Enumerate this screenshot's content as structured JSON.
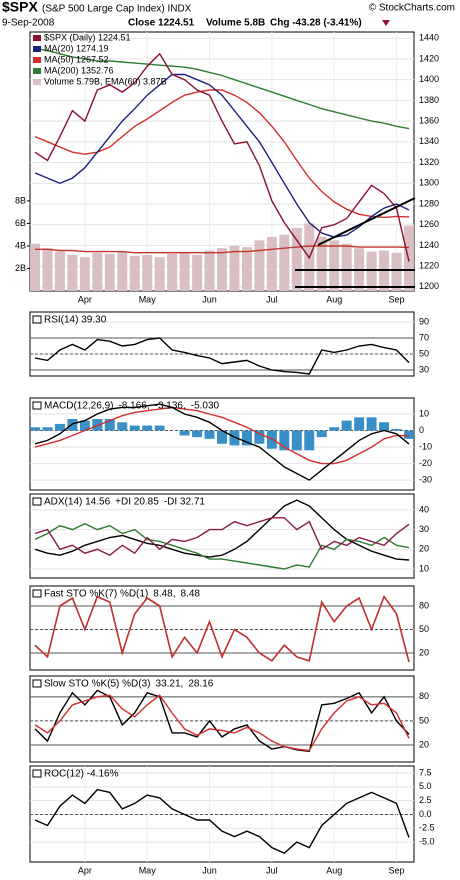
{
  "header": {
    "symbol": "$SPX",
    "name": "(S&P 500 Large Cap Index) INDX",
    "date": "9-Sep-2008",
    "close": "Close 1224.51",
    "volume": "Volume 5.8B",
    "change": "Chg -43.28 (-3.41%)",
    "credit": "© StockCharts.com"
  },
  "chart_data": [
    {
      "type": "line",
      "categories": [
        null,
        null,
        null,
        null,
        "Apr",
        null,
        null,
        null,
        null,
        "May",
        null,
        null,
        null,
        null,
        "Jun",
        null,
        null,
        null,
        null,
        "Jul",
        null,
        null,
        null,
        null,
        "Aug",
        null,
        null,
        null,
        null,
        "Sep",
        null
      ],
      "ylim": [
        1196,
        1446
      ],
      "yticks": [
        1200,
        1220,
        1240,
        1260,
        1280,
        1300,
        1320,
        1340,
        1360,
        1380,
        1400,
        1420,
        1440
      ],
      "y2lim": [
        0,
        23
      ],
      "y2ticks": [
        {
          "value": 2,
          "label": "2B"
        },
        {
          "value": 4,
          "label": "4B"
        },
        {
          "value": 6,
          "label": "6B"
        },
        {
          "value": 8,
          "label": "8B"
        }
      ],
      "series": [
        {
          "name": "Volume 5.79B, EMA(60) 3.87B",
          "type": "bar",
          "axis": "y2",
          "color": "#d9bfc3",
          "values": [
            4.2,
            3.8,
            3.5,
            3.2,
            3.0,
            3.4,
            3.3,
            3.5,
            3.1,
            3.2,
            3.0,
            3.3,
            3.4,
            3.2,
            3.6,
            3.8,
            4.0,
            3.9,
            4.5,
            4.8,
            5.0,
            5.6,
            6.0,
            4.8,
            4.5,
            4.2,
            3.8,
            3.5,
            3.6,
            3.4,
            5.79
          ]
        },
        {
          "axis": "y2",
          "color": "#c0392b",
          "values": [
            3.7,
            3.7,
            3.6,
            3.6,
            3.5,
            3.5,
            3.5,
            3.5,
            3.4,
            3.4,
            3.4,
            3.4,
            3.4,
            3.4,
            3.4,
            3.4,
            3.5,
            3.5,
            3.6,
            3.7,
            3.8,
            3.9,
            4.0,
            4.0,
            4.0,
            4.0,
            3.9,
            3.9,
            3.9,
            3.9,
            3.87
          ]
        },
        {
          "name": "MA(200) 1352.76",
          "color": "#2e7d32",
          "values": [
            1430,
            1428,
            1425,
            1422,
            1420,
            1418,
            1418,
            1417,
            1416,
            1415,
            1414,
            1413,
            1412,
            1410,
            1407,
            1404,
            1400,
            1396,
            1392,
            1388,
            1384,
            1380,
            1376,
            1372,
            1369,
            1366,
            1363,
            1360,
            1358,
            1355,
            1352.76
          ]
        },
        {
          "name": "MA(50) 1267.52",
          "color": "#d32f2f",
          "values": [
            1345,
            1340,
            1335,
            1330,
            1328,
            1330,
            1335,
            1345,
            1355,
            1362,
            1370,
            1378,
            1385,
            1388,
            1390,
            1390,
            1385,
            1378,
            1368,
            1355,
            1340,
            1322,
            1305,
            1292,
            1282,
            1275,
            1270,
            1268,
            1267,
            1268,
            1267.52
          ]
        },
        {
          "name": "MA(20) 1274.19",
          "color": "#1a237e",
          "values": [
            1310,
            1305,
            1300,
            1305,
            1315,
            1330,
            1345,
            1360,
            1372,
            1385,
            1395,
            1405,
            1405,
            1400,
            1395,
            1385,
            1370,
            1355,
            1340,
            1320,
            1300,
            1280,
            1262,
            1252,
            1248,
            1250,
            1258,
            1268,
            1276,
            1280,
            1274.19
          ]
        },
        {
          "name": "$SPX (Daily) 1224.51",
          "color": "#8b1030",
          "values": [
            1330,
            1322,
            1345,
            1370,
            1360,
            1390,
            1395,
            1388,
            1397,
            1413,
            1425,
            1405,
            1400,
            1390,
            1385,
            1360,
            1338,
            1340,
            1317,
            1283,
            1262,
            1245,
            1228,
            1257,
            1260,
            1266,
            1282,
            1298,
            1290,
            1276,
            1224.51
          ]
        }
      ]
    },
    {
      "type": "line",
      "ylim": [
        22.5,
        102.5
      ],
      "yticks": [
        30,
        50,
        70,
        90
      ],
      "hlines": [
        30,
        50,
        70
      ],
      "series": [
        {
          "name": "RSI(14) 39.30",
          "color": "#000000",
          "values": [
            45,
            42,
            55,
            62,
            55,
            68,
            66,
            60,
            62,
            68,
            70,
            55,
            52,
            48,
            45,
            38,
            40,
            42,
            35,
            30,
            28,
            27,
            25,
            55,
            52,
            55,
            60,
            62,
            58,
            55,
            39.3
          ]
        }
      ]
    },
    {
      "type": "line",
      "title": "MACD(12,26,9)",
      "ylim": [
        -36,
        19.7
      ],
      "yticks": [
        10,
        0,
        -10,
        -20,
        -30
      ],
      "hlines": [
        0
      ],
      "series": [
        {
          "name": "-5.030",
          "type": "bar",
          "color": "#3a8fc7",
          "values": [
            2,
            2,
            4,
            7,
            6,
            7,
            7,
            5,
            3,
            3,
            3,
            0,
            -3,
            -4,
            -5,
            -8,
            -9,
            -9,
            -8,
            -11,
            -12,
            -12,
            -12,
            -4,
            2,
            6,
            8,
            8,
            5,
            1,
            -5.03
          ]
        },
        {
          "name": "-3.136,",
          "color": "#d32f2f",
          "values": [
            -10,
            -8,
            -6,
            -3,
            0,
            3,
            6,
            9,
            11,
            12,
            13,
            14,
            13,
            12,
            10,
            8,
            5,
            2,
            -2,
            -5,
            -10,
            -14,
            -18,
            -20,
            -20,
            -18,
            -14,
            -10,
            -5,
            -3,
            -3.136
          ]
        },
        {
          "name": "-8.166,",
          "color": "#000000",
          "values": [
            -8,
            -6,
            -2,
            4,
            6,
            10,
            13,
            14,
            14,
            15,
            16,
            14,
            10,
            8,
            5,
            0,
            -4,
            -7,
            -10,
            -16,
            -22,
            -26,
            -30,
            -24,
            -18,
            -12,
            -6,
            -2,
            0,
            -2,
            -8.166
          ]
        }
      ]
    },
    {
      "type": "line",
      "ylim": [
        5.4,
        48.1
      ],
      "yticks": [
        10,
        20,
        30,
        40
      ],
      "series": [
        {
          "name": "ADX(14) 14.56",
          "color": "#000000",
          "values": [
            20,
            18,
            17,
            19,
            22,
            24,
            26,
            27,
            25,
            23,
            22,
            20,
            18,
            17,
            16,
            17,
            20,
            24,
            30,
            36,
            42,
            45,
            42,
            36,
            30,
            25,
            22,
            19,
            17,
            15,
            14.56
          ]
        },
        {
          "name": "+DI 20.85",
          "color": "#2e7d32",
          "values": [
            25,
            28,
            32,
            30,
            33,
            30,
            32,
            28,
            30,
            25,
            24,
            22,
            20,
            18,
            15,
            15,
            14,
            13,
            12,
            11,
            10,
            12,
            11,
            22,
            20,
            25,
            24,
            22,
            26,
            22,
            20.85
          ]
        },
        {
          "name": "-DI 32.71",
          "color": "#8b1a4a",
          "values": [
            28,
            30,
            20,
            22,
            18,
            20,
            17,
            22,
            18,
            26,
            20,
            25,
            24,
            26,
            30,
            30,
            34,
            32,
            34,
            36,
            36,
            30,
            34,
            20,
            24,
            22,
            26,
            24,
            22,
            28,
            32.71
          ]
        }
      ]
    },
    {
      "type": "line",
      "title": "Fast STO %K(7) %D(1)",
      "ylim": [
        -1.7,
        105.5
      ],
      "yticks": [
        20,
        50,
        80
      ],
      "hlines": [
        20,
        50,
        80
      ],
      "series": [
        {
          "name": "8.48,",
          "color": "#000000",
          "values": [
            30,
            15,
            80,
            90,
            50,
            92,
            85,
            20,
            70,
            90,
            80,
            15,
            40,
            20,
            60,
            15,
            50,
            40,
            20,
            10,
            30,
            15,
            10,
            85,
            60,
            80,
            90,
            50,
            92,
            70,
            8.48
          ]
        },
        {
          "name": "8.48",
          "color": "#d32f2f",
          "values": [
            30,
            15,
            80,
            90,
            50,
            92,
            85,
            20,
            70,
            90,
            80,
            15,
            40,
            20,
            60,
            15,
            50,
            40,
            20,
            10,
            30,
            15,
            10,
            85,
            60,
            80,
            90,
            50,
            92,
            70,
            8.48
          ]
        }
      ]
    },
    {
      "type": "line",
      "title": "Slow STO %K(5) %D(3)",
      "ylim": [
        -1.25,
        106
      ],
      "yticks": [
        20,
        50,
        80
      ],
      "hlines": [
        20,
        50,
        80
      ],
      "series": [
        {
          "name": "33.21,",
          "color": "#000000",
          "values": [
            40,
            25,
            60,
            85,
            70,
            88,
            80,
            45,
            60,
            85,
            80,
            35,
            35,
            30,
            50,
            30,
            40,
            45,
            25,
            15,
            18,
            14,
            12,
            70,
            72,
            78,
            85,
            60,
            80,
            50,
            33.21
          ]
        },
        {
          "name": "28.16",
          "color": "#d32f2f",
          "values": [
            45,
            35,
            50,
            70,
            75,
            80,
            82,
            65,
            55,
            70,
            82,
            60,
            40,
            32,
            40,
            38,
            35,
            42,
            35,
            25,
            18,
            15,
            13,
            40,
            60,
            75,
            80,
            70,
            72,
            60,
            28.16
          ]
        }
      ]
    },
    {
      "type": "line",
      "ylim": [
        -8.6,
        8.77
      ],
      "categories": [
        null,
        null,
        null,
        null,
        "Apr",
        null,
        null,
        null,
        null,
        "May",
        null,
        null,
        null,
        null,
        "Jun",
        null,
        null,
        null,
        null,
        "Jul",
        null,
        null,
        null,
        null,
        "Aug",
        null,
        null,
        null,
        null,
        "Sep",
        null
      ],
      "yticks": [
        {
          "value": 7.5,
          "label": "7.5"
        },
        {
          "value": 5,
          "label": "5.0"
        },
        {
          "value": 2.5,
          "label": "2.5"
        },
        {
          "value": 0,
          "label": "0.0"
        },
        {
          "value": -2.5,
          "label": "-2.5"
        },
        {
          "value": -5,
          "label": "-5.0"
        }
      ],
      "hlines": [
        0
      ],
      "series": [
        {
          "name": "ROC(12) -4.16%",
          "color": "#000000",
          "values": [
            -1,
            -2,
            1.5,
            3.5,
            2,
            4.5,
            4,
            1,
            2,
            3.5,
            3,
            1,
            0,
            -1,
            -1,
            -3,
            -4,
            -3,
            -4,
            -6,
            -7,
            -5,
            -6,
            -2,
            0,
            2,
            3,
            4,
            3,
            2,
            -4.16
          ]
        }
      ]
    }
  ]
}
